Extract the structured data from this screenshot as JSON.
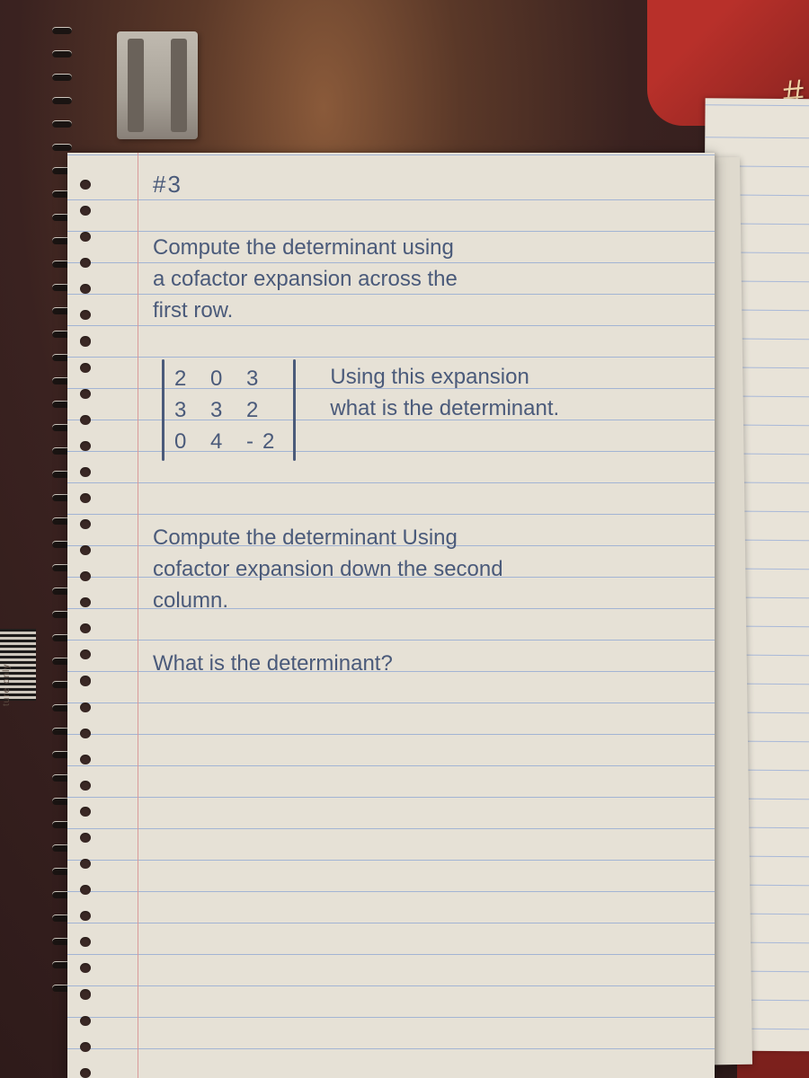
{
  "problem_number": "#3",
  "title_line1": "Compute the determinant using",
  "title_line2": "a cofactor expansion across the",
  "title_line3": "first row.",
  "matrix": {
    "r1": "2 0 3",
    "r2": "3 3 2",
    "r3": "0 4 -2"
  },
  "side_question_l1": "Using this expansion",
  "side_question_l2": "what is the determinant.",
  "part2_l1": "Compute the determinant Using",
  "part2_l2": "cofactor expansion down the second",
  "part2_l3": "column.",
  "part2_q": "What is the determinant?",
  "barcode_text": "ture only",
  "hashmark": "#",
  "colors": {
    "ink": "#4a5a7a",
    "paper": "#e6e1d6",
    "rule_line": "#a2b4d4",
    "margin_line": "#d89a9a",
    "backdrop_dark": "#3a2220",
    "red_surface": "#a82a24"
  }
}
